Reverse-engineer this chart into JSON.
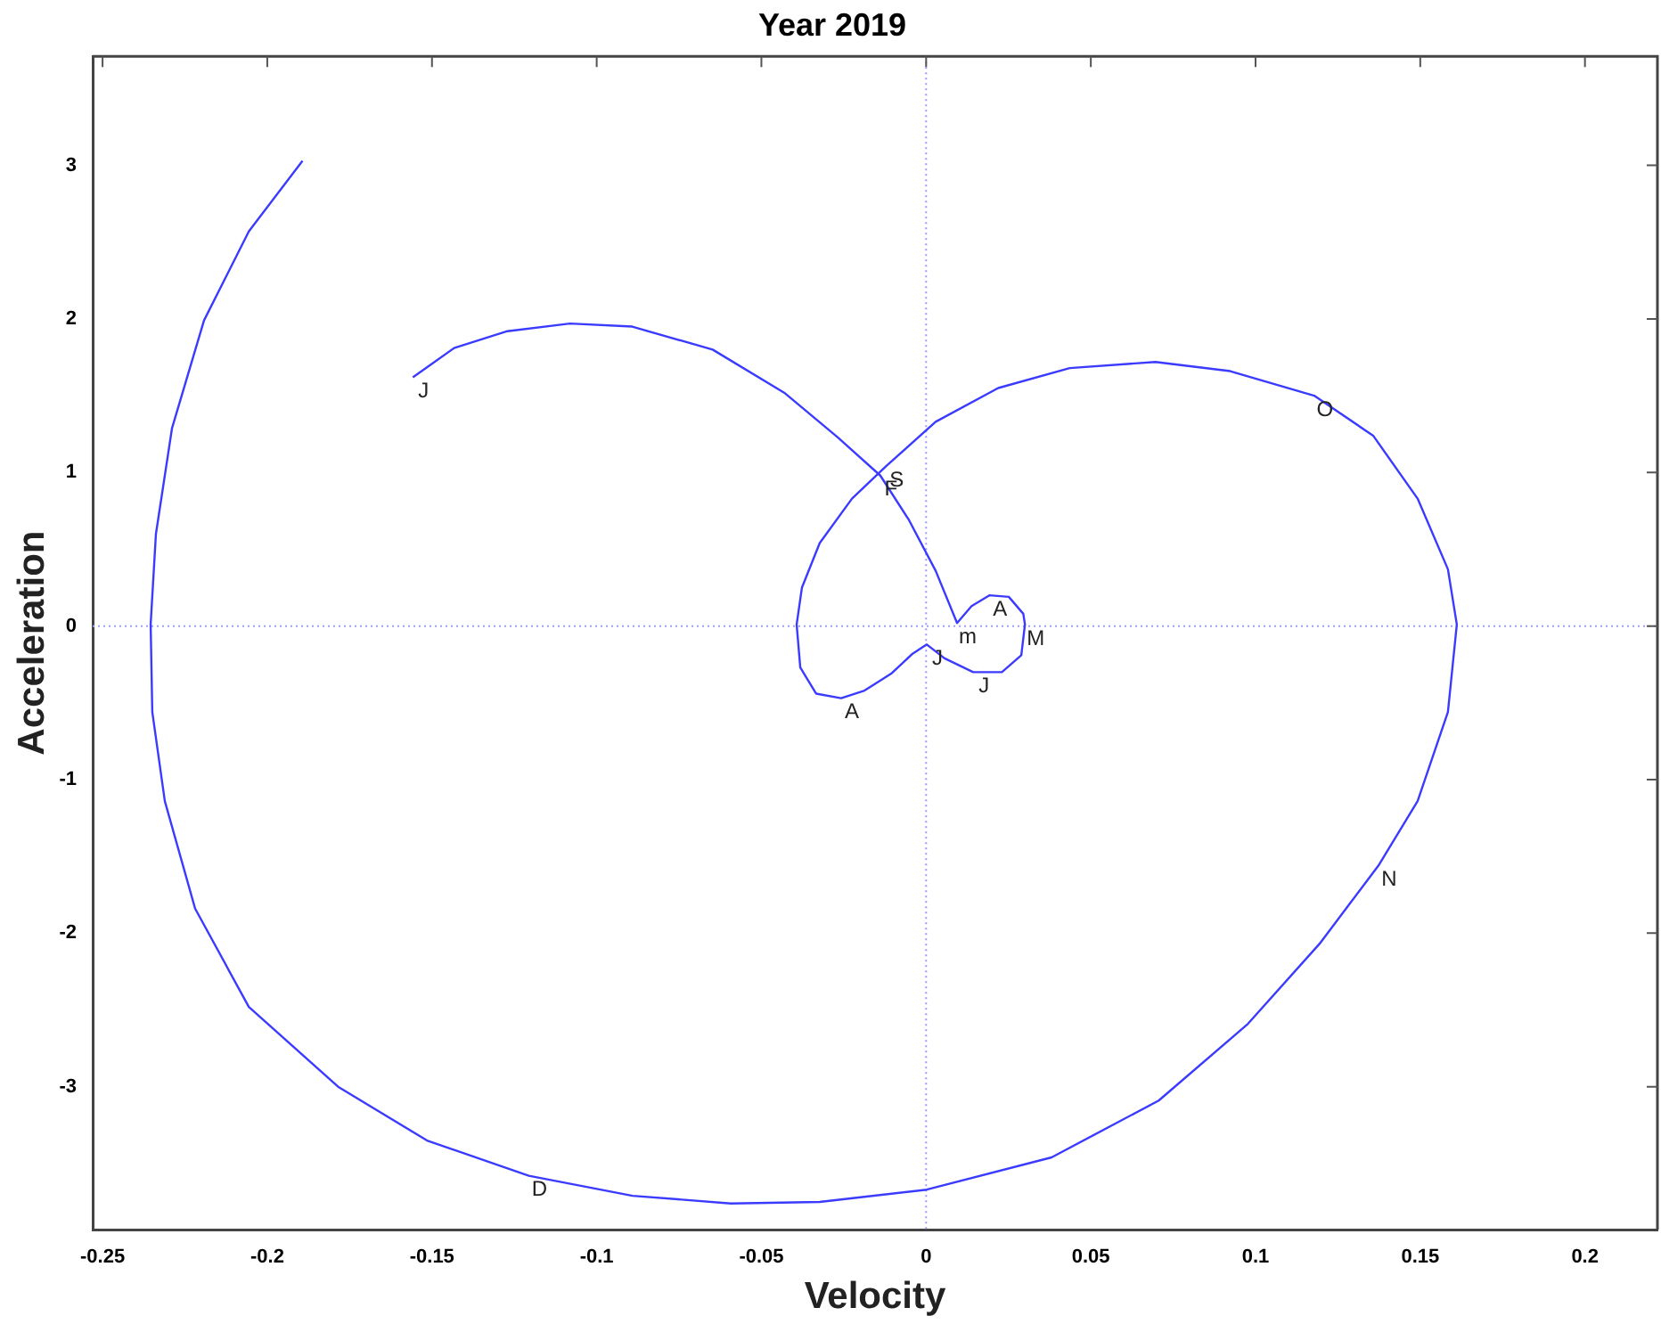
{
  "chart_data": {
    "type": "line",
    "title": "Year 2019",
    "xlabel": "Velocity",
    "ylabel": "Acceleration",
    "series": [
      {
        "color": "#3b3bff",
        "x": [
          -0.1558,
          -0.1433,
          -0.1271,
          -0.1081,
          -0.0892,
          -0.0648,
          -0.0431,
          -0.0269,
          -0.0139,
          -0.0052,
          0.0029,
          0.0094,
          0.0138,
          0.0192,
          0.0251,
          0.0295,
          0.03,
          0.0289,
          0.023,
          0.0143,
          0.0056,
          0.0002,
          -0.0041,
          -0.0106,
          -0.0187,
          -0.0258,
          -0.0334,
          -0.0382,
          -0.0393,
          -0.0377,
          -0.0323,
          -0.0225,
          -0.0122,
          0.0029,
          0.0219,
          0.0436,
          0.0696,
          0.0923,
          0.1178,
          0.1357,
          0.1492,
          0.1584,
          0.1611,
          0.1584,
          0.1492,
          0.1373,
          0.1194,
          0.0977,
          0.0706,
          0.0381,
          0.0002,
          -0.0323,
          -0.0593,
          -0.0891,
          -0.1206,
          -0.1515,
          -0.1785,
          -0.2056,
          -0.2219,
          -0.2311,
          -0.2349,
          -0.2354,
          -0.2338,
          -0.2289,
          -0.2192,
          -0.2056,
          -0.1893
        ],
        "values": [
          1.62,
          1.81,
          1.92,
          1.97,
          1.95,
          1.8,
          1.52,
          1.23,
          0.98,
          0.69,
          0.36,
          0.02,
          0.13,
          0.2,
          0.19,
          0.08,
          0.01,
          -0.19,
          -0.3,
          -0.3,
          -0.21,
          -0.12,
          -0.18,
          -0.31,
          -0.42,
          -0.47,
          -0.44,
          -0.27,
          0.01,
          0.25,
          0.54,
          0.83,
          1.04,
          1.33,
          1.55,
          1.68,
          1.72,
          1.66,
          1.5,
          1.24,
          0.83,
          0.37,
          0.01,
          -0.56,
          -1.14,
          -1.56,
          -2.07,
          -2.59,
          -3.09,
          -3.46,
          -3.67,
          -3.75,
          -3.76,
          -3.71,
          -3.58,
          -3.35,
          -3.0,
          -2.48,
          -1.84,
          -1.14,
          -0.56,
          0.01,
          0.6,
          1.29,
          1.99,
          2.57,
          3.03
        ]
      }
    ],
    "xlim": [
      -0.253,
      0.222
    ],
    "xticks": [
      -0.25,
      -0.2,
      -0.15,
      -0.1,
      -0.05,
      0,
      0.05,
      0.1,
      0.15,
      0.2
    ],
    "ylim": [
      -3.93,
      3.71
    ],
    "yticks": [
      -3,
      -2,
      -1,
      0,
      1,
      2,
      3
    ],
    "marker": "none",
    "line_style": "solid",
    "grid": false,
    "legend": false,
    "ref_lines": [
      {
        "axis": "x",
        "value": 0,
        "color": "#9999ff",
        "line_style": "dotted"
      },
      {
        "axis": "y",
        "value": 0,
        "color": "#a0a0f8",
        "line_style": "dotted"
      }
    ],
    "annotations": [
      {
        "text": "J",
        "x": -0.1558,
        "y": 1.62
      },
      {
        "text": "F",
        "x": -0.0139,
        "y": 0.98
      },
      {
        "text": "m",
        "x": 0.0094,
        "y": 0.02
      },
      {
        "text": "A",
        "x": 0.0192,
        "y": 0.2
      },
      {
        "text": "M",
        "x": 0.03,
        "y": 0.01
      },
      {
        "text": "J",
        "x": 0.0143,
        "y": -0.3
      },
      {
        "text": "J",
        "x": 0.0002,
        "y": -0.12
      },
      {
        "text": "A",
        "x": -0.0258,
        "y": -0.47
      },
      {
        "text": "S",
        "x": -0.0122,
        "y": 1.04
      },
      {
        "text": "O",
        "x": 0.1178,
        "y": 1.5
      },
      {
        "text": "N",
        "x": 0.1373,
        "y": -1.56
      },
      {
        "text": "D",
        "x": -0.1206,
        "y": -3.58
      }
    ]
  }
}
